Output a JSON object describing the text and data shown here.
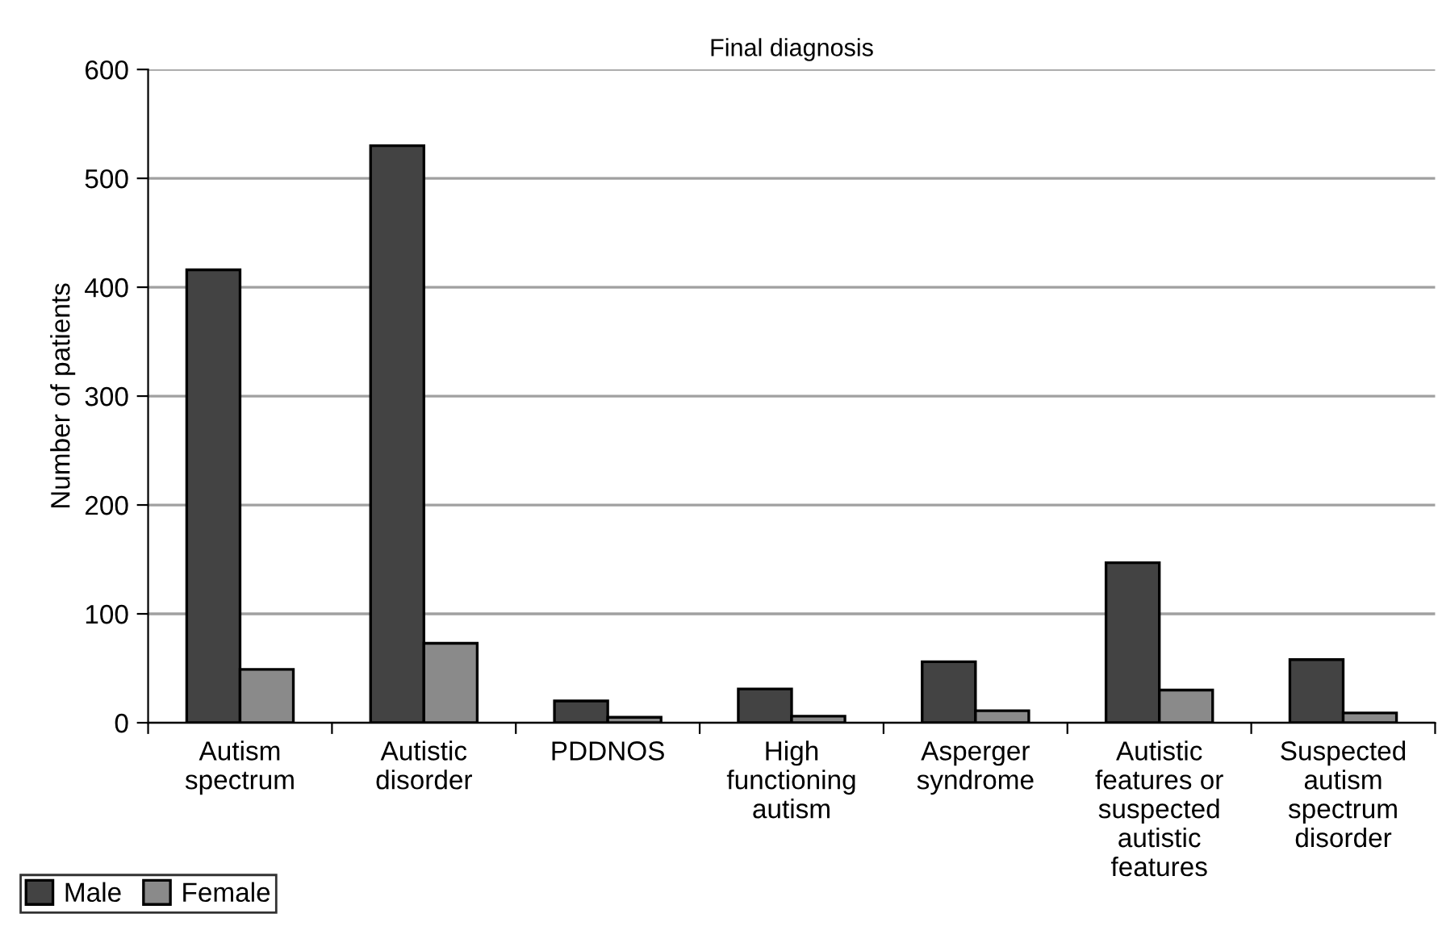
{
  "chart_data": {
    "type": "bar",
    "title": "Final diagnosis",
    "ylabel": "Number of patients",
    "categories": [
      "Autism spectrum",
      "Autistic disorder",
      "PDDNOS",
      "High functioning autism",
      "Asperger syndrome",
      "Autistic features or suspected autistic features",
      "Suspected autism spectrum disorder"
    ],
    "series": [
      {
        "name": "Male",
        "color": "#434343",
        "values": [
          416,
          530,
          20,
          31,
          56,
          147,
          58
        ]
      },
      {
        "name": "Female",
        "color": "#8a8a8a",
        "values": [
          49,
          73,
          5,
          6,
          11,
          30,
          9
        ]
      }
    ],
    "ylim": [
      0,
      600
    ],
    "yticks": [
      0,
      100,
      200,
      300,
      400,
      500,
      600
    ],
    "grid": "y",
    "legend": "bottom left"
  }
}
